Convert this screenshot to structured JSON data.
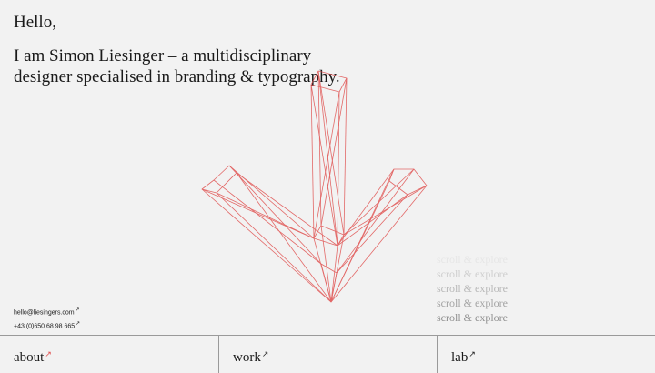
{
  "hero": {
    "greeting": "Hello,",
    "intro_line1": "I am Simon Liesinger – a multidisciplinary",
    "intro_line2": "designer specialised in branding & typography."
  },
  "scroll_hint": {
    "label": "scroll & explore",
    "lines": [
      {
        "text": "scroll & explore",
        "color": "#e6e6e6"
      },
      {
        "text": "scroll & explore",
        "color": "#cfcfcf"
      },
      {
        "text": "scroll & explore",
        "color": "#b8b8b8"
      },
      {
        "text": "scroll & explore",
        "color": "#a3a3a3"
      },
      {
        "text": "scroll & explore",
        "color": "#8f8f8f"
      }
    ]
  },
  "contact": {
    "email": "hello@liesingers.com",
    "phone": "+43 (0)650 68 98 665",
    "arrow": "↗"
  },
  "nav": {
    "about": {
      "label": "about",
      "arrow": "↗",
      "arrow_color": "#e0504f"
    },
    "work": {
      "label": "work",
      "arrow": "↗",
      "arrow_color": "#1a1a1a"
    },
    "lab": {
      "label": "lab",
      "arrow": "↗",
      "arrow_color": "#1a1a1a"
    }
  },
  "colors": {
    "background": "#f2f2f2",
    "accent": "#e0504f",
    "text": "#1a1a1a",
    "divider": "#9a9a9a"
  },
  "icons": {
    "arrow_graphic": "wireframe-down-arrow-icon"
  }
}
